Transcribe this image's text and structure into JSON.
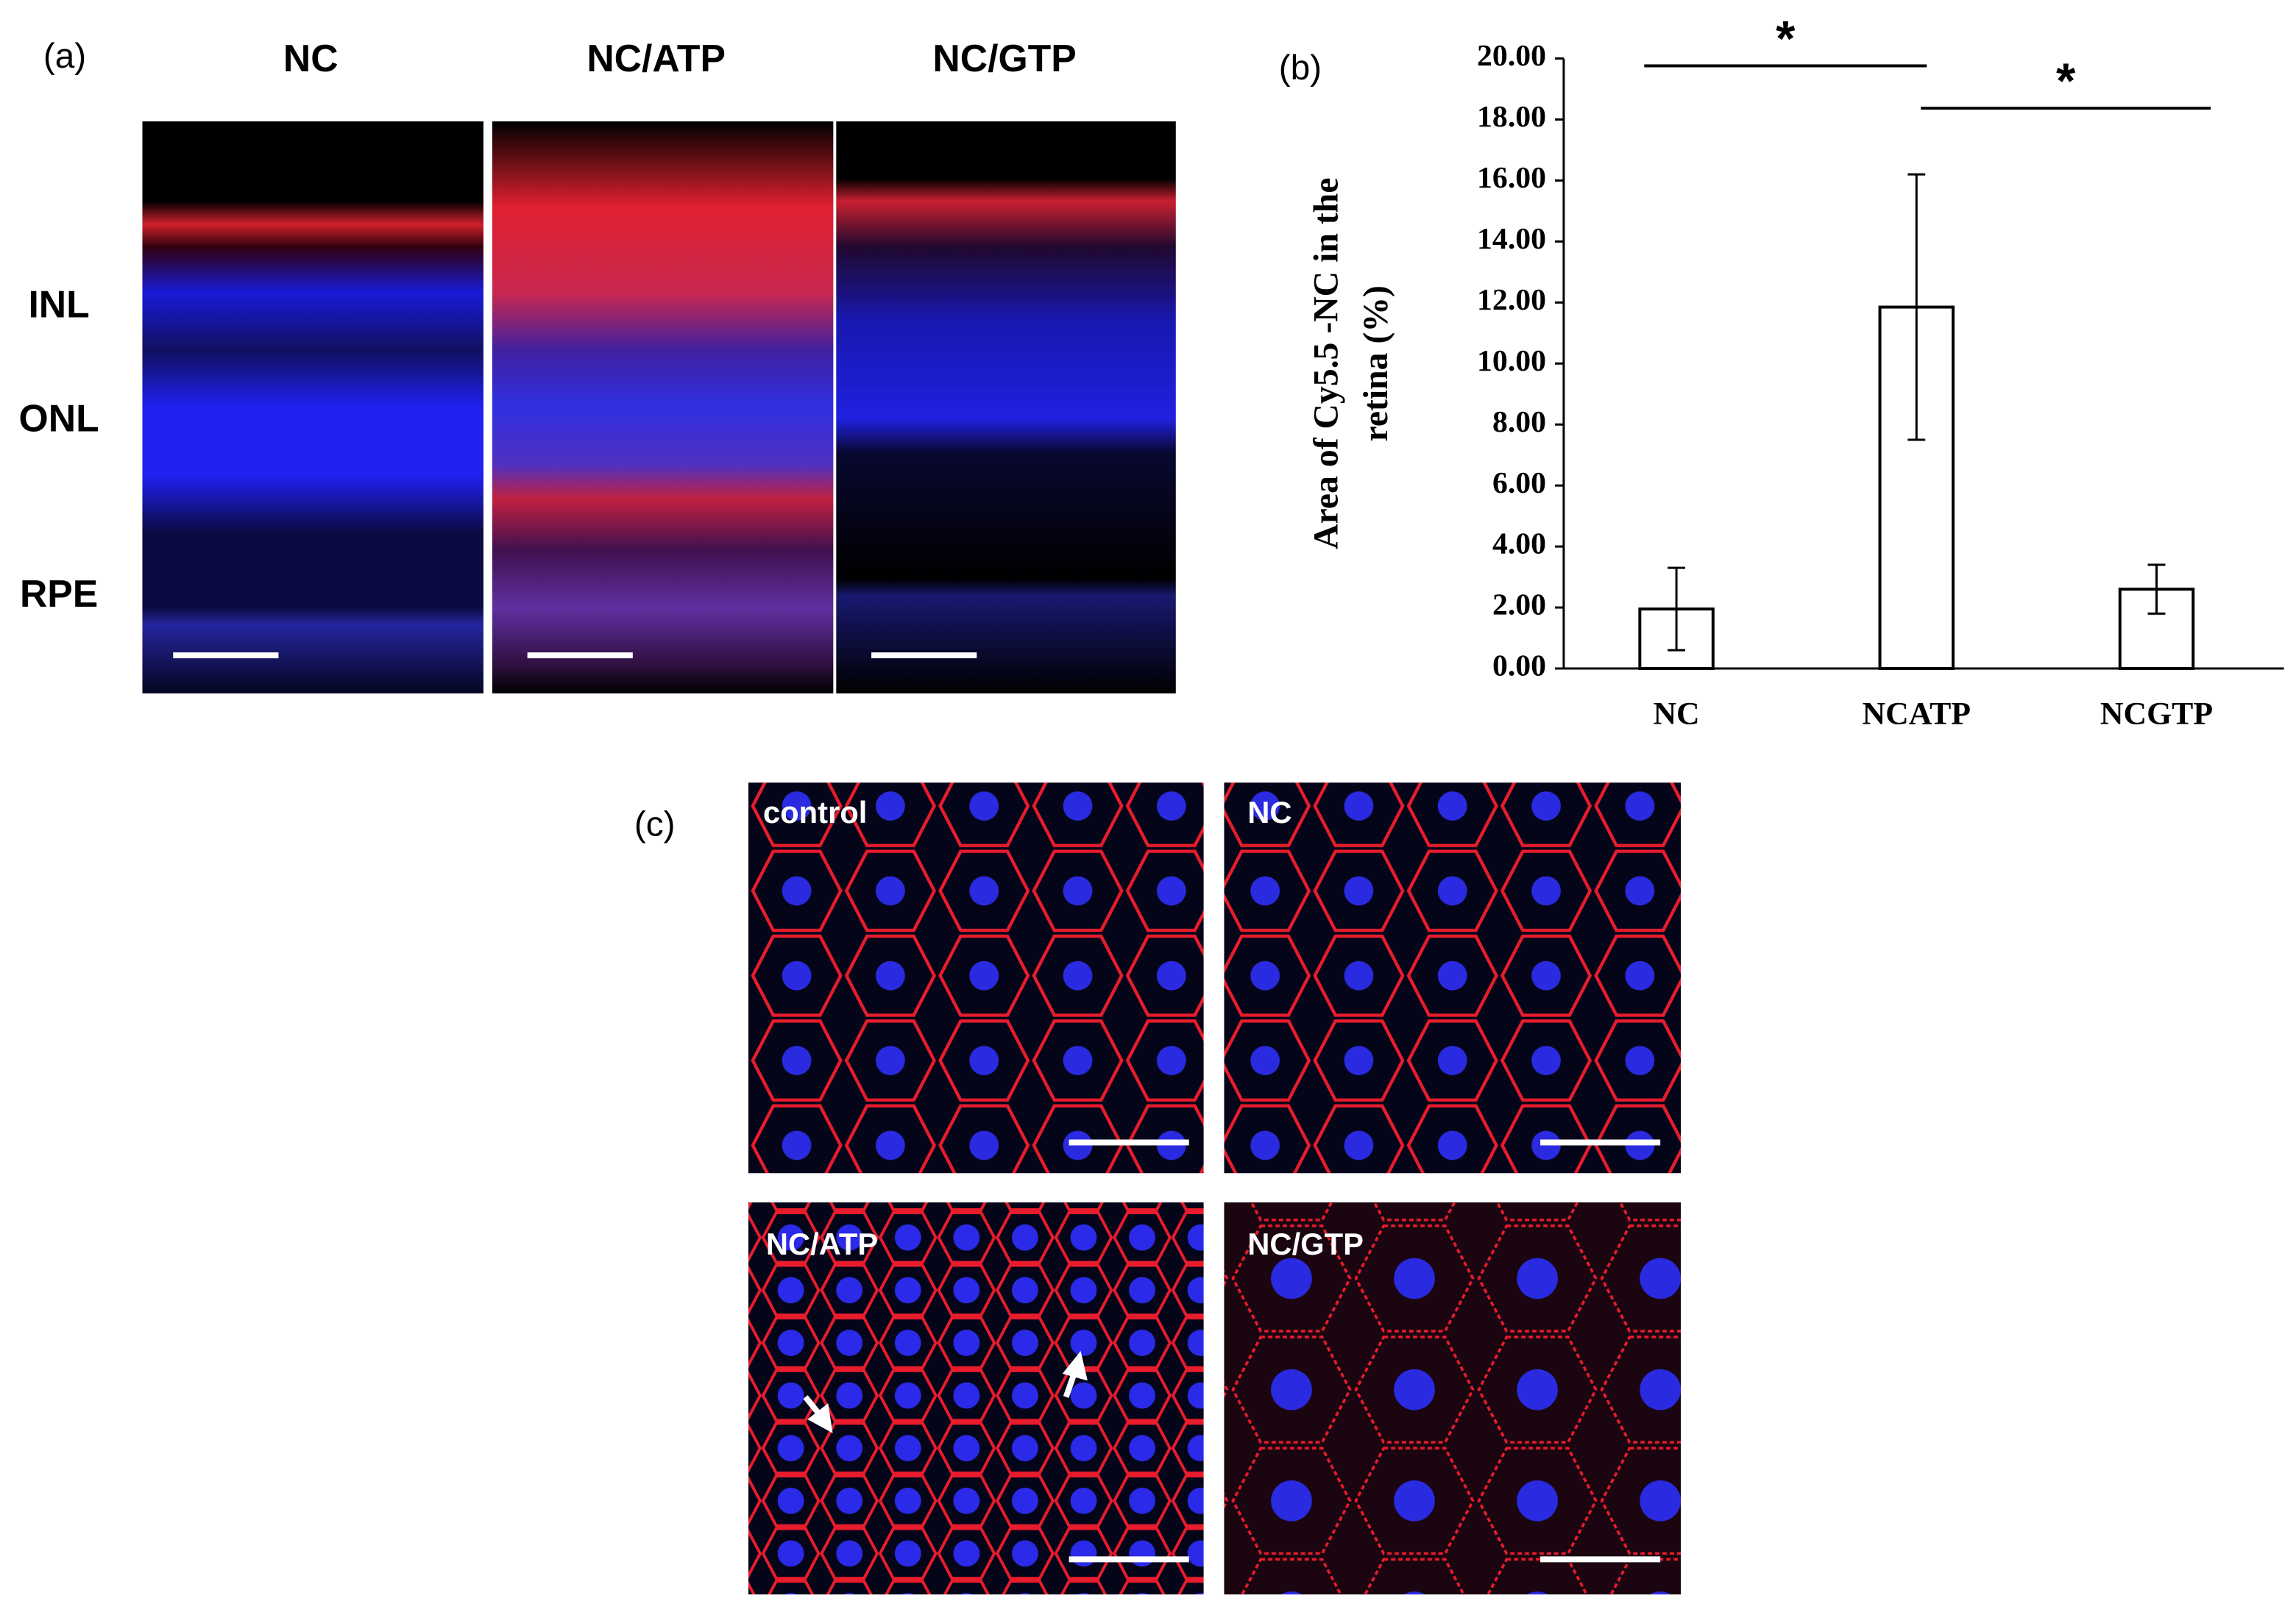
{
  "panel_a": {
    "label": "(a)",
    "titles": [
      "NC",
      "NC/ATP",
      "NC/GTP"
    ],
    "layers": [
      "INL",
      "ONL",
      "RPE"
    ]
  },
  "chart_data": {
    "type": "bar",
    "panel_label": "(b)",
    "ylabel": [
      "Area of Cy5.5 -NC in the",
      "retina (%)"
    ],
    "categories": [
      "NC",
      "NCATP",
      "NCGTP"
    ],
    "values": [
      1.95,
      11.85,
      2.6
    ],
    "errors": [
      1.35,
      4.35,
      0.8
    ],
    "color": "#ffffff",
    "edgecolor": "#000000",
    "ylim": [
      0,
      20
    ],
    "yticks": [
      {
        "value": 0,
        "label": "0.00"
      },
      {
        "value": 2,
        "label": "2.00"
      },
      {
        "value": 4,
        "label": "4.00"
      },
      {
        "value": 6,
        "label": "6.00"
      },
      {
        "value": 8,
        "label": "8.00"
      },
      {
        "value": 10,
        "label": "10.00"
      },
      {
        "value": 12,
        "label": "12.00"
      },
      {
        "value": 14,
        "label": "14.00"
      },
      {
        "value": 16,
        "label": "16.00"
      },
      {
        "value": 18,
        "label": "18.00"
      },
      {
        "value": 20,
        "label": "20.00"
      }
    ],
    "grid": false,
    "annotations": [
      {
        "label": "*",
        "from": "NC",
        "to": "NCATP"
      },
      {
        "label": "*",
        "from": "NCATP",
        "to": "NCGTP"
      }
    ]
  },
  "panel_c": {
    "label": "(c)",
    "titles": [
      "control",
      "NC",
      "NC/ATP",
      "NC/GTP"
    ]
  }
}
